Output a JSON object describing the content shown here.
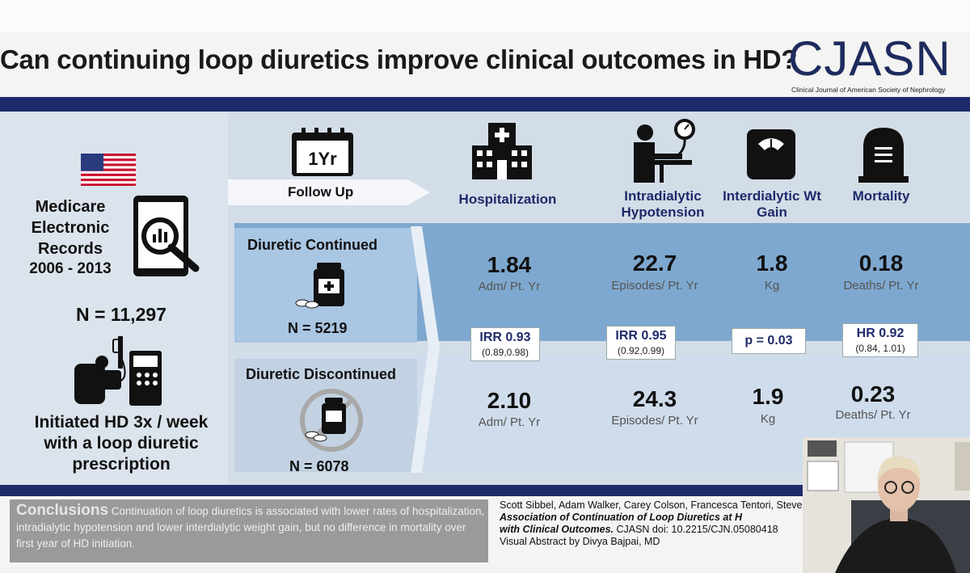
{
  "header": {
    "title": "Can continuing loop diuretics improve clinical outcomes in HD?",
    "logo_text": "CJASN",
    "logo_subtitle": "Clinical Journal of American Society of Nephrology"
  },
  "left": {
    "source_label": "Medicare Electronic Records",
    "years": "2006 - 2013",
    "n_total": "N = 11,297",
    "population": "Initiated HD 3x / week with a loop diuretic prescription"
  },
  "follow_up": {
    "badge": "1Yr",
    "label": "Follow Up"
  },
  "columns": [
    {
      "label": "Hospitalization",
      "icon": "hospital-icon"
    },
    {
      "label": "Intradialytic Hypotension",
      "icon": "blood-pressure-icon"
    },
    {
      "label": "Interdialytic Wt Gain",
      "icon": "scale-icon"
    },
    {
      "label": "Mortality",
      "icon": "tombstone-icon"
    }
  ],
  "continued": {
    "label": "Diuretic Continued",
    "n": "N = 5219",
    "values": [
      "1.84",
      "22.7",
      "1.8",
      "0.18"
    ],
    "units": [
      "Adm/ Pt. Yr",
      "Episodes/ Pt. Yr",
      "Kg",
      "Deaths/ Pt. Yr"
    ]
  },
  "discontinued": {
    "label": "Diuretic Discontinued",
    "n": "N = 6078",
    "values": [
      "2.10",
      "24.3",
      "1.9",
      "0.23"
    ],
    "units": [
      "Adm/ Pt. Yr",
      "Episodes/ Pt. Yr",
      "Kg",
      "Deaths/ Pt. Yr"
    ]
  },
  "stats": [
    {
      "main": "IRR 0.93",
      "ci": "(0.89,0.98)"
    },
    {
      "main": "IRR 0.95",
      "ci": "(0.92,0.99)"
    },
    {
      "main": "p = 0.03",
      "ci": ""
    },
    {
      "main": "HR 0.92",
      "ci": "(0.84, 1.01)"
    }
  ],
  "conclusions": {
    "heading": "Conclusions",
    "text": "Continuation of loop diuretics is associated with lower rates of hospitalization, intradialytic hypotension and lower interdialytic weight gain, but no difference in mortality over first year of HD initiation."
  },
  "citation": {
    "authors": "Scott Sibbel, Adam Walker, Carey Colson, Francesca Tentori, Steven",
    "title_line1": "Association of Continuation of Loop Diuretics at H",
    "title_line2": "with Clinical Outcomes.",
    "doi": " CJASN doi: 10.2215/CJN.05080418",
    "credit": "Visual Abstract by Divya Bajpai, MD"
  },
  "colors": {
    "navy": "#1e2a6a",
    "continued_band": "#7ea8cf",
    "discontinued_band": "#cfdceb",
    "conclusions_box": "#9a9a9a"
  }
}
